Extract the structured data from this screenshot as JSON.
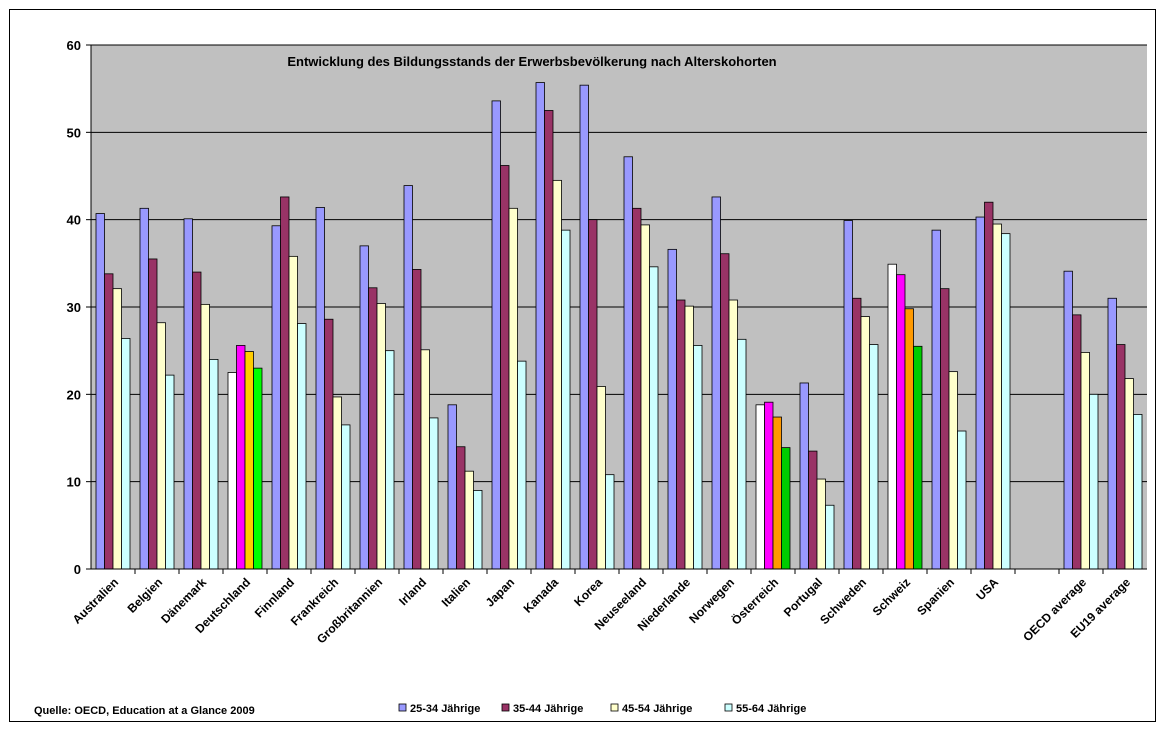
{
  "chart_data": {
    "type": "bar",
    "title": "Entwicklung des Bildungsstands der Erwerbsbevölkerung nach Alterskohorten",
    "source": "Quelle: OECD, Education at a Glance 2009",
    "ylim": [
      0,
      60
    ],
    "yticks": [
      0,
      10,
      20,
      30,
      40,
      50,
      60
    ],
    "grid": true,
    "legend_position": "bottom",
    "categories": [
      "Australien",
      "Belgien",
      "Dänemark",
      "Deutschland",
      "Finnland",
      "Frankreich",
      "Großbritannien",
      "Irland",
      "Italien",
      "Japan",
      "Kanada",
      "Korea",
      "Neuseeland",
      "Niederlande",
      "Norwegen",
      "Österreich",
      "Portugal",
      "Schweden",
      "Schweiz",
      "Spanien",
      "USA",
      "",
      "OECD average",
      "EU19 average"
    ],
    "series": [
      {
        "name": "25-34 Jährige",
        "color": "#9999ff",
        "values": [
          40.7,
          41.3,
          40.1,
          22.5,
          39.3,
          41.4,
          37.0,
          43.9,
          18.8,
          53.6,
          55.7,
          55.4,
          47.2,
          36.6,
          42.6,
          18.8,
          21.3,
          39.9,
          34.9,
          38.8,
          40.3,
          null,
          34.1,
          31.0
        ]
      },
      {
        "name": "35-44 Jährige",
        "color": "#993366",
        "values": [
          33.8,
          35.5,
          34.0,
          25.6,
          42.6,
          28.6,
          32.2,
          34.3,
          14.0,
          46.2,
          52.5,
          40.0,
          41.3,
          30.8,
          36.1,
          19.1,
          13.5,
          31.0,
          33.7,
          32.1,
          42.0,
          null,
          29.1,
          25.7
        ]
      },
      {
        "name": "45-54 Jährige",
        "color": "#ffffcc",
        "values": [
          32.1,
          28.2,
          30.3,
          24.9,
          35.8,
          19.7,
          30.4,
          25.1,
          11.2,
          41.3,
          44.5,
          20.9,
          39.4,
          30.1,
          30.8,
          17.4,
          10.3,
          28.9,
          29.8,
          22.6,
          39.5,
          null,
          24.8,
          21.8
        ]
      },
      {
        "name": "55-64 Jährige",
        "color": "#ccffff",
        "values": [
          26.4,
          22.2,
          24.0,
          23.0,
          28.1,
          16.5,
          25.0,
          17.3,
          9.0,
          23.8,
          38.8,
          10.8,
          34.6,
          25.6,
          26.3,
          13.9,
          7.3,
          25.7,
          25.5,
          15.8,
          38.4,
          null,
          20.0,
          17.7
        ]
      }
    ],
    "highlight_colors": {
      "Deutschland": [
        "#ffffff",
        "#ff00ff",
        "#ffcc00",
        "#00ff00"
      ],
      "Österreich": [
        "#ffffff",
        "#ff00ff",
        "#ff9900",
        "#00cc00"
      ],
      "Schweiz": [
        "#ffffff",
        "#ff00ff",
        "#ff9900",
        "#00cc00"
      ]
    },
    "plot_background": "#c0c0c0"
  }
}
